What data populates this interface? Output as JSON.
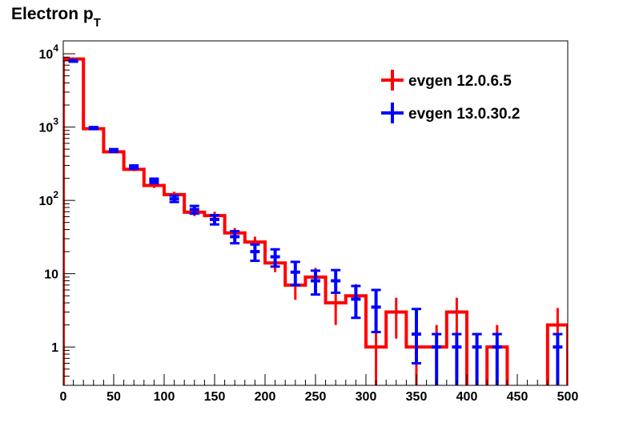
{
  "chart_data": {
    "type": "histogram",
    "title": "Electron p",
    "title_subscript": "T",
    "xlim": [
      0,
      500
    ],
    "ylim": [
      0.3,
      15000
    ],
    "y_scale": "log",
    "x_ticks": [
      {
        "value": 0,
        "label": "0"
      },
      {
        "value": 50,
        "label": "50"
      },
      {
        "value": 100,
        "label": "100"
      },
      {
        "value": 150,
        "label": "150"
      },
      {
        "value": 200,
        "label": "200"
      },
      {
        "value": 250,
        "label": "250"
      },
      {
        "value": 300,
        "label": "300"
      },
      {
        "value": 350,
        "label": "350"
      },
      {
        "value": 400,
        "label": "400"
      },
      {
        "value": 450,
        "label": "450"
      },
      {
        "value": 500,
        "label": "500"
      }
    ],
    "y_ticks": [
      {
        "value": 1,
        "base": "1",
        "exp": ""
      },
      {
        "value": 10,
        "base": "10",
        "exp": ""
      },
      {
        "value": 100,
        "base": "10",
        "exp": "2"
      },
      {
        "value": 1000,
        "base": "10",
        "exp": "3"
      },
      {
        "value": 10000,
        "base": "10",
        "exp": "4"
      }
    ],
    "legend_position": "top-right",
    "grid": false,
    "series": [
      {
        "name": "evgen 12.0.6.5",
        "color": "#ff0000",
        "style": "step-with-errors",
        "bins": [
          {
            "x0": 0,
            "x1": 20,
            "y": 8500,
            "lo": 8300,
            "hi": 8700
          },
          {
            "x0": 20,
            "x1": 40,
            "y": 950,
            "lo": 920,
            "hi": 980
          },
          {
            "x0": 40,
            "x1": 60,
            "y": 460,
            "lo": 440,
            "hi": 480
          },
          {
            "x0": 60,
            "x1": 80,
            "y": 265,
            "lo": 250,
            "hi": 280
          },
          {
            "x0": 80,
            "x1": 100,
            "y": 160,
            "lo": 148,
            "hi": 172
          },
          {
            "x0": 100,
            "x1": 120,
            "y": 120,
            "lo": 110,
            "hi": 131
          },
          {
            "x0": 120,
            "x1": 140,
            "y": 69,
            "lo": 61,
            "hi": 77
          },
          {
            "x0": 140,
            "x1": 160,
            "y": 62,
            "lo": 54,
            "hi": 70
          },
          {
            "x0": 160,
            "x1": 180,
            "y": 36,
            "lo": 30,
            "hi": 42
          },
          {
            "x0": 180,
            "x1": 200,
            "y": 27,
            "lo": 22,
            "hi": 32
          },
          {
            "x0": 200,
            "x1": 220,
            "y": 14,
            "lo": 10.5,
            "hi": 17.8
          },
          {
            "x0": 220,
            "x1": 240,
            "y": 7,
            "lo": 4.4,
            "hi": 9.6
          },
          {
            "x0": 240,
            "x1": 260,
            "y": 9,
            "lo": 6,
            "hi": 12
          },
          {
            "x0": 260,
            "x1": 280,
            "y": 4,
            "lo": 2,
            "hi": 6
          },
          {
            "x0": 280,
            "x1": 300,
            "y": 5,
            "lo": 2.8,
            "hi": 7.2
          },
          {
            "x0": 300,
            "x1": 320,
            "y": 1,
            "lo": 0.1,
            "hi": 2
          },
          {
            "x0": 320,
            "x1": 340,
            "y": 3,
            "lo": 1.3,
            "hi": 4.7
          },
          {
            "x0": 340,
            "x1": 360,
            "y": 1,
            "lo": 0.1,
            "hi": 2
          },
          {
            "x0": 360,
            "x1": 380,
            "y": 1,
            "lo": 0.1,
            "hi": 2
          },
          {
            "x0": 380,
            "x1": 400,
            "y": 3,
            "lo": 1.3,
            "hi": 4.7
          },
          {
            "x0": 400,
            "x1": 420,
            "y": 0,
            "lo": 0,
            "hi": 0
          },
          {
            "x0": 420,
            "x1": 440,
            "y": 1,
            "lo": 0.1,
            "hi": 2
          },
          {
            "x0": 440,
            "x1": 460,
            "y": 0,
            "lo": 0,
            "hi": 0
          },
          {
            "x0": 460,
            "x1": 480,
            "y": 0,
            "lo": 0,
            "hi": 0
          },
          {
            "x0": 480,
            "x1": 500,
            "y": 2,
            "lo": 0.6,
            "hi": 3.4
          }
        ]
      },
      {
        "name": "evgen 13.0.30.2",
        "color": "#0000ff",
        "style": "points-with-errors",
        "bins": [
          {
            "x0": 0,
            "x1": 20,
            "y": 8000,
            "lo": 7800,
            "hi": 8200
          },
          {
            "x0": 20,
            "x1": 40,
            "y": 970,
            "lo": 940,
            "hi": 1000
          },
          {
            "x0": 40,
            "x1": 60,
            "y": 480,
            "lo": 460,
            "hi": 500
          },
          {
            "x0": 60,
            "x1": 80,
            "y": 285,
            "lo": 270,
            "hi": 300
          },
          {
            "x0": 80,
            "x1": 100,
            "y": 185,
            "lo": 172,
            "hi": 198
          },
          {
            "x0": 100,
            "x1": 120,
            "y": 105,
            "lo": 95,
            "hi": 116
          },
          {
            "x0": 120,
            "x1": 140,
            "y": 75,
            "lo": 66,
            "hi": 84
          },
          {
            "x0": 140,
            "x1": 160,
            "y": 55,
            "lo": 47,
            "hi": 63
          },
          {
            "x0": 160,
            "x1": 180,
            "y": 32,
            "lo": 26,
            "hi": 38
          },
          {
            "x0": 180,
            "x1": 200,
            "y": 20,
            "lo": 15,
            "hi": 25
          },
          {
            "x0": 200,
            "x1": 220,
            "y": 17,
            "lo": 12.5,
            "hi": 21.5
          },
          {
            "x0": 220,
            "x1": 240,
            "y": 10.5,
            "lo": 7,
            "hi": 14.5
          },
          {
            "x0": 240,
            "x1": 260,
            "y": 8,
            "lo": 5.2,
            "hi": 11
          },
          {
            "x0": 260,
            "x1": 280,
            "y": 8,
            "lo": 5.5,
            "hi": 11.2
          },
          {
            "x0": 280,
            "x1": 300,
            "y": 4.5,
            "lo": 2.5,
            "hi": 6.8
          },
          {
            "x0": 300,
            "x1": 320,
            "y": 3.5,
            "lo": 1.6,
            "hi": 6
          },
          {
            "x0": 320,
            "x1": 340,
            "y": 0,
            "lo": 0,
            "hi": 0
          },
          {
            "x0": 340,
            "x1": 360,
            "y": 1.5,
            "lo": 0.6,
            "hi": 3.3
          },
          {
            "x0": 360,
            "x1": 380,
            "y": 1,
            "lo": 0.1,
            "hi": 1.5
          },
          {
            "x0": 380,
            "x1": 400,
            "y": 1,
            "lo": 0.1,
            "hi": 1.5
          },
          {
            "x0": 400,
            "x1": 420,
            "y": 1,
            "lo": 0.1,
            "hi": 1.5
          },
          {
            "x0": 420,
            "x1": 440,
            "y": 1,
            "lo": 0.1,
            "hi": 1.5
          },
          {
            "x0": 440,
            "x1": 460,
            "y": 0,
            "lo": 0,
            "hi": 0
          },
          {
            "x0": 460,
            "x1": 480,
            "y": 0,
            "lo": 0,
            "hi": 0
          },
          {
            "x0": 480,
            "x1": 500,
            "y": 1,
            "lo": 0.1,
            "hi": 1.5
          }
        ]
      }
    ]
  }
}
